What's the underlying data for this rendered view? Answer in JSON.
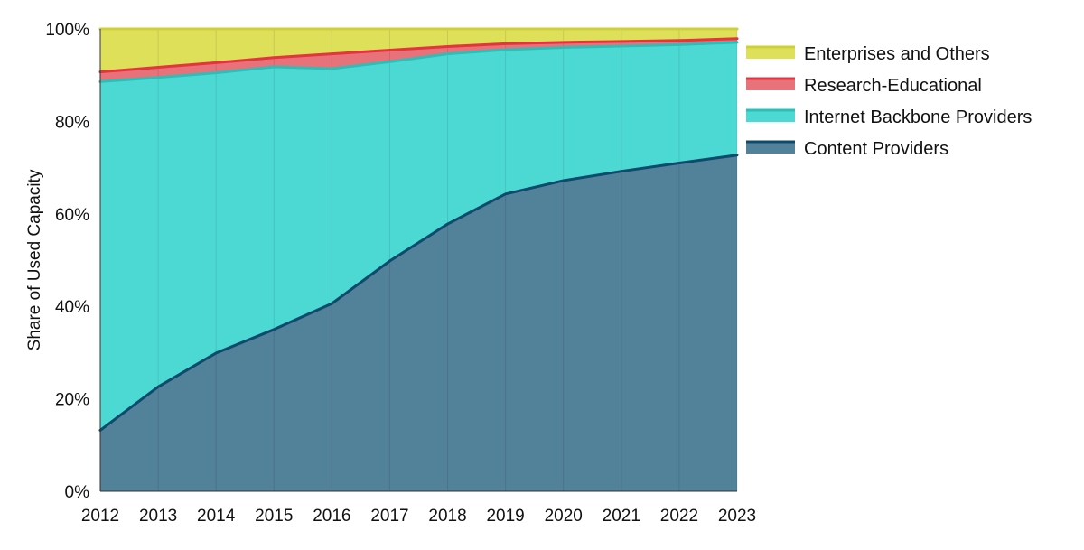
{
  "chart_data": {
    "type": "area",
    "stacked": true,
    "title": "",
    "xlabel": "",
    "ylabel": "Share of Used Capacity",
    "x": [
      "2012",
      "2013",
      "2014",
      "2015",
      "2016",
      "2017",
      "2018",
      "2019",
      "2020",
      "2021",
      "2022",
      "2023"
    ],
    "ylim": [
      0,
      100
    ],
    "y_ticks": [
      "0%",
      "20%",
      "40%",
      "60%",
      "80%",
      "100%"
    ],
    "grid": {
      "vertical": true,
      "horizontal": false
    },
    "legend_position": "right-top",
    "series": [
      {
        "name": "Content Providers",
        "fill": "#52819a",
        "line": "#0d4a6b",
        "values": [
          13.2,
          22.6,
          29.9,
          35.0,
          40.6,
          49.8,
          57.8,
          64.3,
          67.2,
          69.2,
          71.0,
          72.7
        ]
      },
      {
        "name": "Internet Backbone Providers",
        "fill": "#4dd9d3",
        "line": "#2bbfb8",
        "values": [
          75.4,
          66.9,
          60.6,
          56.8,
          50.8,
          43.1,
          36.8,
          31.2,
          28.8,
          27.1,
          25.6,
          24.4
        ]
      },
      {
        "name": "Research-Educational",
        "fill": "#e8727a",
        "line": "#e3343f",
        "values": [
          2.1,
          2.2,
          2.2,
          2.0,
          3.2,
          2.5,
          1.6,
          1.3,
          1.1,
          1.0,
          0.9,
          0.8
        ]
      },
      {
        "name": "Enterprises and Others",
        "fill": "#dfe05a",
        "line": "#cfcf3a",
        "values": [
          9.3,
          8.3,
          7.3,
          6.2,
          5.4,
          4.6,
          3.8,
          3.2,
          2.9,
          2.7,
          2.5,
          2.1
        ]
      }
    ]
  }
}
